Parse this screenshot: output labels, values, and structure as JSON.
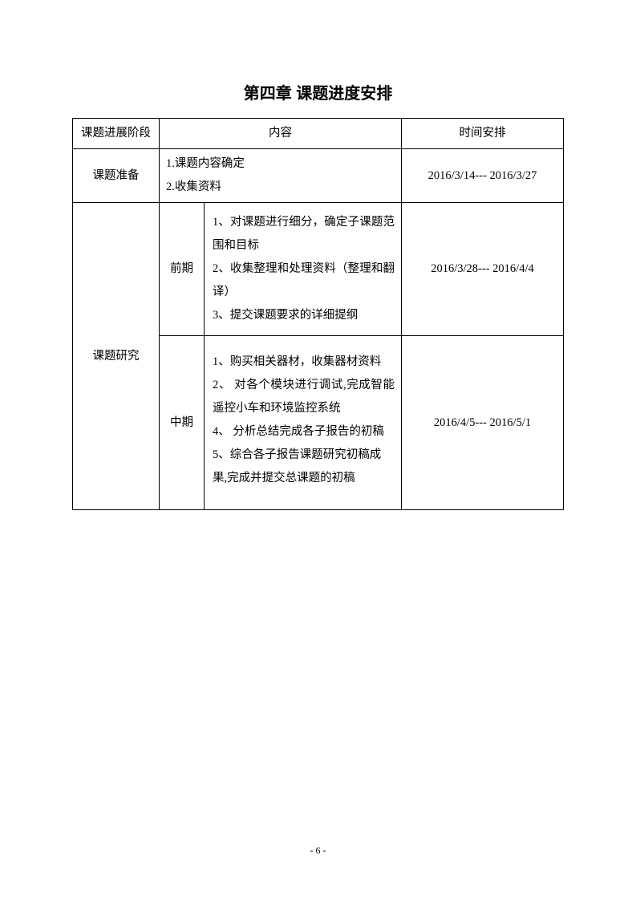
{
  "title": "第四章  课题进度安排",
  "headers": {
    "stage": "课题进展阶段",
    "content": "内容",
    "time": "时间安排"
  },
  "rows": {
    "prep": {
      "stage": "课题准备",
      "content_line1": "1.课题内容确定",
      "content_line2": "2.收集资料",
      "time": "2016/3/14--- 2016/3/27"
    },
    "research": {
      "stage": "课题研究",
      "early": {
        "phase": "前期",
        "content": "1、对课题进行细分，确定子课题范围和目标\n2、收集整理和处理资料（整理和翻译）\n3、提交课题要求的详细提纲",
        "time": "2016/3/28--- 2016/4/4"
      },
      "mid": {
        "phase": "中期",
        "content": "1、购买相关器材，收集器材资料\n2、 对各个模块进行调试,完成智能遥控小车和环境监控系统\n4、 分析总结完成各子报告的初稿\n5、综合各子报告课题研究初稿成\n果,完成并提交总课题的初稿",
        "time": "2016/4/5--- 2016/5/1"
      }
    }
  },
  "page_number": "- 6 -"
}
